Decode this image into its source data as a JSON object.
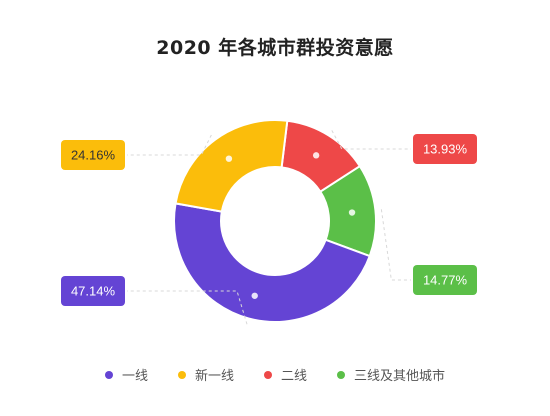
{
  "chart_data": {
    "type": "pie",
    "title": "2020 年各城市群投资意愿",
    "donut": true,
    "categories": [
      "一线",
      "新一线",
      "二线",
      "三线及其他城市"
    ],
    "values": [
      47.14,
      24.16,
      13.93,
      14.77
    ],
    "labels": [
      "47.14%",
      "24.16%",
      "13.93%",
      "14.77%"
    ],
    "colors": [
      "#6444d4",
      "#fbbd0b",
      "#ee4848",
      "#5bbf48"
    ],
    "legend_position": "bottom"
  }
}
